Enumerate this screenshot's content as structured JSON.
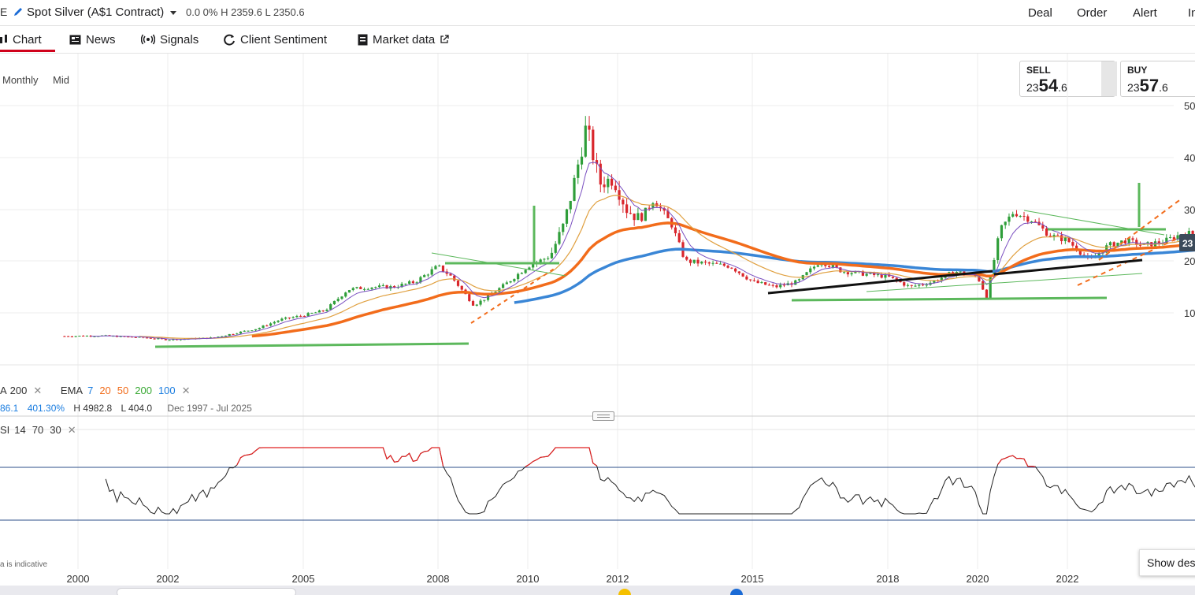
{
  "instrument": {
    "edge_glyph": "E",
    "title": "Spot Silver (A$1 Contract)",
    "quote": "0.0  0% H 2359.6 L 2350.6"
  },
  "actions": [
    "Deal",
    "Order",
    "Alert",
    "In"
  ],
  "tabs": [
    {
      "label": "Chart",
      "icon": "candlestick-chart-icon"
    },
    {
      "label": "News",
      "icon": "newspaper-icon"
    },
    {
      "label": "Signals",
      "icon": "signal-icon"
    },
    {
      "label": "Client Sentiment",
      "icon": "refresh-icon"
    },
    {
      "label": "Market data",
      "icon": "document-icon"
    }
  ],
  "period": {
    "interval": "Monthly",
    "price_type": "Mid"
  },
  "sell": {
    "label": "SELL",
    "small": "23",
    "big": "54",
    "decimal": ".6"
  },
  "buy": {
    "label": "BUY",
    "small": "23",
    "big": "57",
    "decimal": ".6"
  },
  "price_tag": "23",
  "indicators": {
    "ma_label": "A",
    "ma_period": "200",
    "ema_label": "EMA",
    "ema_periods": [
      "7",
      "20",
      "50",
      "200",
      "100"
    ],
    "ema_colors": [
      "#1a7de0",
      "#f26c1b",
      "#f26c1b",
      "#3aa935",
      "#1a7de0"
    ],
    "stats_a": "86.1",
    "stats_pct": "401.30%",
    "stats_high": "H 4982.8",
    "stats_low": "L 404.0",
    "stats_range": "Dec 1997 - Jul 2025",
    "rsi_label": "SI",
    "rsi_params": [
      "14",
      "70",
      "30"
    ]
  },
  "footnote": "a is indicative",
  "show_desktop": "Show desk",
  "chart_data": {
    "type": "candlestick",
    "interval": "monthly",
    "x_ticks": [
      "2000",
      "2002",
      "2005",
      "2008",
      "2010",
      "2012",
      "2015",
      "2018",
      "2020",
      "2022"
    ],
    "y_ticks": [
      "50",
      "40",
      "30",
      "20",
      "10"
    ],
    "price_approx": [
      [
        "2000",
        550
      ],
      [
        "2002",
        500
      ],
      [
        "2004",
        700
      ],
      [
        "2005",
        1050
      ],
      [
        "2006",
        1450
      ],
      [
        "2007",
        1600
      ],
      [
        "2008",
        1900
      ],
      [
        "2009",
        1300
      ],
      [
        "2010",
        2000
      ],
      [
        "2011",
        4900
      ],
      [
        "2012",
        3200
      ],
      [
        "2013",
        2600
      ],
      [
        "2014",
        1900
      ],
      [
        "2015",
        1700
      ],
      [
        "2016",
        1800
      ],
      [
        "2017",
        1750
      ],
      [
        "2018",
        1600
      ],
      [
        "2019",
        1750
      ],
      [
        "2020",
        1500
      ],
      [
        "2021",
        3000
      ],
      [
        "2022",
        2400
      ],
      [
        "2023",
        2300
      ],
      [
        "2024",
        2450
      ],
      [
        "2025",
        2355
      ]
    ],
    "rsi_levels": [
      70,
      30
    ],
    "grid": true
  }
}
